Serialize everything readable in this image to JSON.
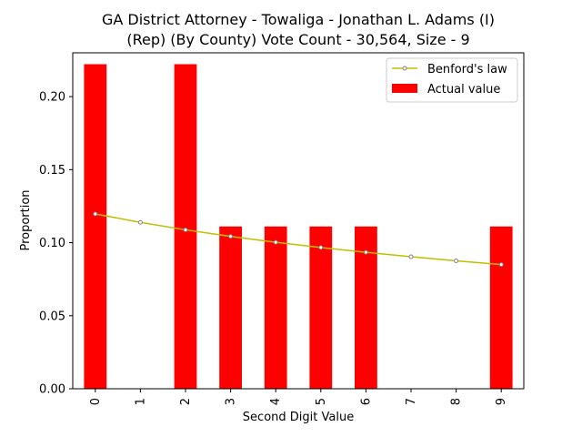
{
  "chart_data": {
    "type": "bar",
    "title": "GA District Attorney - Towaliga - Jonathan L. Adams (I)",
    "subtitle": "(Rep) (By County) Vote Count - 30,564, Size - 9",
    "xlabel": "Second Digit Value",
    "ylabel": "Proportion",
    "categories": [
      "0",
      "1",
      "2",
      "3",
      "4",
      "5",
      "6",
      "7",
      "8",
      "9"
    ],
    "ylim": [
      0,
      0.23
    ],
    "yticks": [
      "0.00",
      "0.05",
      "0.10",
      "0.15",
      "0.20"
    ],
    "legend_position": "top-right",
    "grid": false,
    "series": [
      {
        "name": "Actual value",
        "kind": "bar",
        "color": "#ff0000",
        "values": [
          0.2222,
          0.0,
          0.2222,
          0.1111,
          0.1111,
          0.1111,
          0.1111,
          0.0,
          0.0,
          0.1111
        ]
      },
      {
        "name": "Benford's law",
        "kind": "line",
        "color": "#bfbf00",
        "values": [
          0.1197,
          0.1139,
          0.1088,
          0.1043,
          0.1003,
          0.0967,
          0.0934,
          0.0904,
          0.0876,
          0.085
        ]
      }
    ]
  }
}
